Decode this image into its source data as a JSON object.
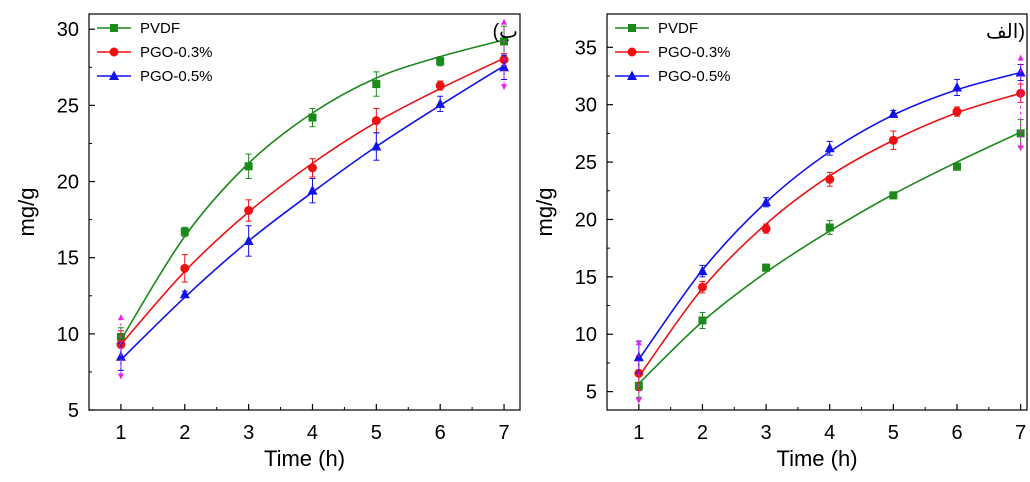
{
  "chart_data": [
    {
      "type": "line",
      "panel_label": "(ب",
      "xlabel": "Time (h)",
      "ylabel": "mg/g",
      "x": [
        1,
        2,
        3,
        4,
        5,
        6,
        7
      ],
      "xlim": [
        0.5,
        7.25
      ],
      "ylim": [
        5,
        31
      ],
      "yticks": [
        5,
        10,
        15,
        20,
        25,
        30
      ],
      "xticks": [
        1,
        2,
        3,
        4,
        5,
        6,
        7
      ],
      "legend_position": "top-left",
      "series": [
        {
          "name": "PVDF",
          "color": "#1a8a1a",
          "marker": "square",
          "values": [
            9.8,
            16.7,
            21.0,
            24.2,
            26.4,
            27.9,
            29.2
          ],
          "errors": [
            0.6,
            0.3,
            0.8,
            0.6,
            0.8,
            0.3,
            1.0
          ],
          "fit": [
            9.6,
            16.4,
            21.2,
            24.5,
            26.8,
            28.2,
            29.3
          ]
        },
        {
          "name": "PGO-0.3%",
          "color": "#ee1111",
          "marker": "circle",
          "values": [
            9.3,
            14.3,
            18.1,
            20.9,
            24.0,
            26.3,
            28.0
          ],
          "errors": [
            0.9,
            0.9,
            0.7,
            0.6,
            0.8,
            0.3,
            0.4
          ],
          "fit": [
            9.3,
            14.1,
            18.0,
            21.2,
            23.9,
            26.1,
            28.1
          ]
        },
        {
          "name": "PGO-0.5%",
          "color": "#1111ee",
          "marker": "triangle",
          "values": [
            8.5,
            12.6,
            16.1,
            19.4,
            22.3,
            25.1,
            27.5
          ],
          "errors": [
            0.9,
            0.2,
            1.0,
            0.8,
            0.9,
            0.5,
            0.8
          ],
          "fit": [
            8.3,
            12.4,
            16.1,
            19.3,
            22.3,
            25.0,
            27.6
          ]
        }
      ]
    },
    {
      "type": "line",
      "panel_label": "الف)",
      "xlabel": "Time (h)",
      "ylabel": "mg/g",
      "x": [
        1,
        2,
        3,
        4,
        5,
        6,
        7
      ],
      "xlim": [
        0.5,
        7.1
      ],
      "ylim": [
        3.4,
        37.9
      ],
      "yticks": [
        5,
        10,
        15,
        20,
        25,
        30,
        35
      ],
      "xticks": [
        1,
        2,
        3,
        4,
        5,
        6,
        7
      ],
      "legend_position": "top-left",
      "series": [
        {
          "name": "PVDF",
          "color": "#1a8a1a",
          "marker": "square",
          "values": [
            5.5,
            11.2,
            15.8,
            19.3,
            22.1,
            24.6,
            27.5
          ],
          "errors": [
            1.0,
            0.7,
            0.3,
            0.6,
            0.3,
            0.3,
            1.2
          ],
          "fit": [
            5.7,
            11.1,
            15.4,
            19.0,
            22.2,
            25.0,
            27.6
          ]
        },
        {
          "name": "PGO-0.3%",
          "color": "#ee1111",
          "marker": "circle",
          "values": [
            6.6,
            14.1,
            19.2,
            23.5,
            26.9,
            29.4,
            31.0
          ],
          "errors": [
            1.5,
            0.5,
            0.4,
            0.6,
            0.8,
            0.4,
            0.8
          ],
          "fit": [
            6.3,
            14.0,
            19.6,
            23.8,
            26.9,
            29.3,
            31.0
          ]
        },
        {
          "name": "PGO-0.5%",
          "color": "#1111ee",
          "marker": "triangle",
          "values": [
            8.0,
            15.5,
            21.5,
            26.2,
            29.2,
            31.5,
            32.8
          ],
          "errors": [
            1.4,
            0.5,
            0.4,
            0.6,
            0.3,
            0.7,
            0.7
          ],
          "fit": [
            7.8,
            15.6,
            21.5,
            25.9,
            29.1,
            31.3,
            32.8
          ]
        }
      ]
    }
  ]
}
